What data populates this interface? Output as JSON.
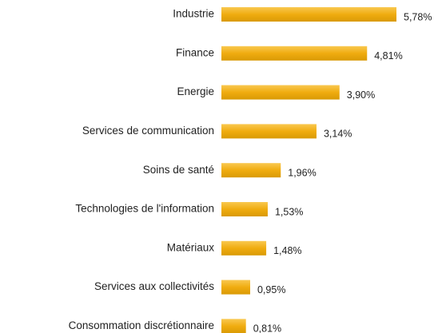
{
  "chart_data": {
    "type": "bar",
    "orientation": "horizontal",
    "categories": [
      "Industrie",
      "Finance",
      "Energie",
      "Services de communication",
      "Soins de santé",
      "Technologies de l'information",
      "Matériaux",
      "Services aux collectivités",
      "Consommation discrétionnaire"
    ],
    "values": [
      5.78,
      4.81,
      3.9,
      3.14,
      1.96,
      1.53,
      1.48,
      0.95,
      0.81
    ],
    "value_labels": [
      "5,78%",
      "4,81%",
      "3,90%",
      "3,14%",
      "1,96%",
      "1,53%",
      "1,48%",
      "0,95%",
      "0,81%"
    ],
    "color": "#f0ac10"
  }
}
